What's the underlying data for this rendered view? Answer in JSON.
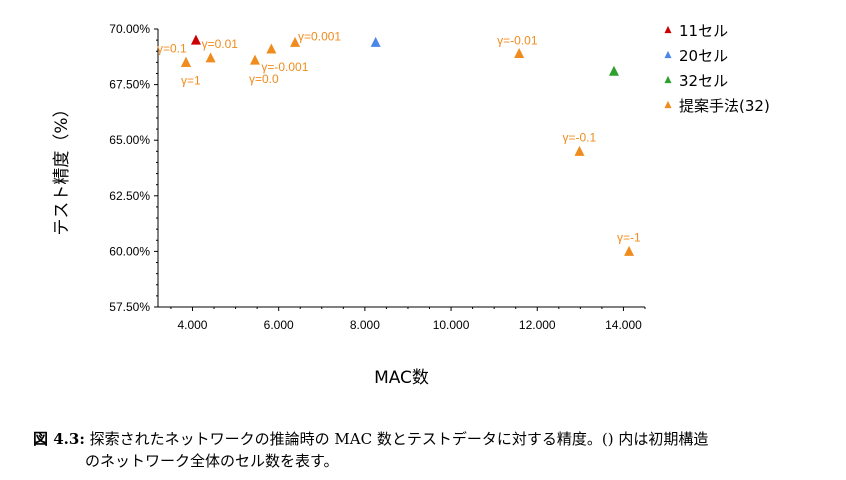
{
  "chart_data": {
    "type": "scatter",
    "xlabel": "MAC数",
    "ylabel": "テスト精度（%）",
    "xlim": [
      3200,
      14500
    ],
    "ylim": [
      57.5,
      70.0
    ],
    "x_ticks": [
      4000,
      6000,
      8000,
      10000,
      12000,
      14000
    ],
    "x_tick_labels": [
      "4.000",
      "6.000",
      "8.000",
      "10.000",
      "12.000",
      "14.000"
    ],
    "y_ticks": [
      57.5,
      60.0,
      62.5,
      65.0,
      67.5,
      70.0
    ],
    "y_tick_labels": [
      "57.50%",
      "60.00%",
      "62.50%",
      "65.00%",
      "67.50%",
      "70.00%"
    ],
    "grid": false,
    "legend_position": "right",
    "series": [
      {
        "name": "11セル",
        "color": "#cc0000",
        "points": [
          {
            "x": 4080,
            "y": 69.5,
            "label": ""
          }
        ]
      },
      {
        "name": "20セル",
        "color": "#4a86e8",
        "points": [
          {
            "x": 8250,
            "y": 69.4,
            "label": ""
          }
        ]
      },
      {
        "name": "32セル",
        "color": "#2ca02c",
        "points": [
          {
            "x": 13780,
            "y": 68.1,
            "label": ""
          }
        ]
      },
      {
        "name": "提案手法(32)",
        "color": "#f08c1e",
        "points": [
          {
            "x": 3850,
            "y": 68.5,
            "label": "γ=0.1"
          },
          {
            "x": 3850,
            "y": 68.5,
            "label": "γ=1"
          },
          {
            "x": 4420,
            "y": 68.7,
            "label": "γ=0.01"
          },
          {
            "x": 5450,
            "y": 68.6,
            "label": "γ=0.0"
          },
          {
            "x": 5830,
            "y": 69.1,
            "label": "γ=-0.001"
          },
          {
            "x": 6380,
            "y": 69.4,
            "label": "γ=0.001"
          },
          {
            "x": 11580,
            "y": 68.9,
            "label": "γ=-0.01"
          },
          {
            "x": 12980,
            "y": 64.5,
            "label": "γ=-0.1"
          },
          {
            "x": 14130,
            "y": 60.0,
            "label": "γ=-1"
          }
        ]
      }
    ]
  },
  "caption": {
    "number": "図 4.3:",
    "line1": "探索されたネットワークの推論時の MAC 数とテストデータに対する精度。() 内は初期構造",
    "line2": "のネットワーク全体のセル数を表す。"
  }
}
